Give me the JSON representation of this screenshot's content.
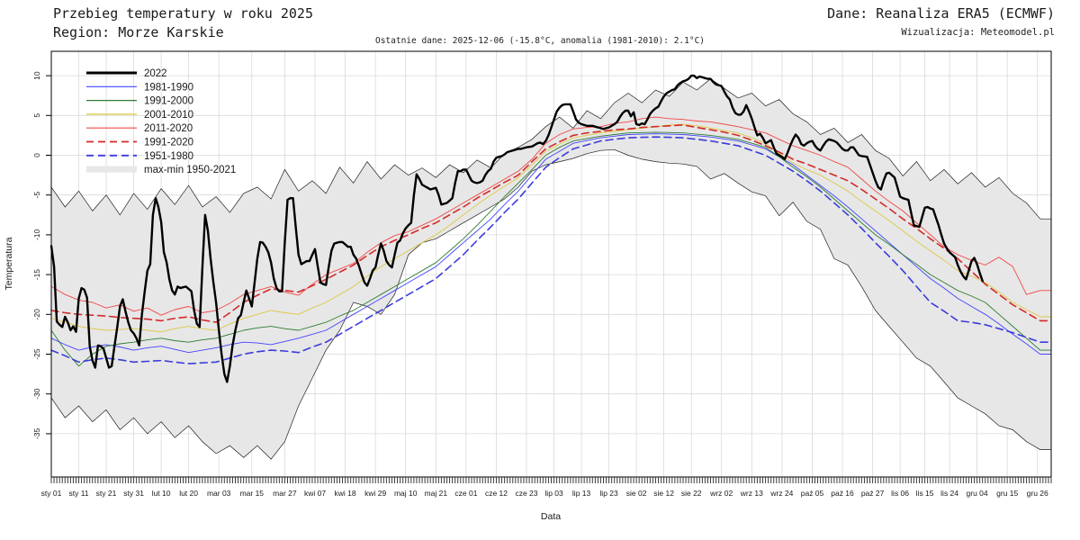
{
  "header": {
    "title": "Przebieg temperatury w roku 2025",
    "region": "Region: Morze Karskie",
    "source": "Dane: Reanaliza ERA5 (ECMWF)",
    "credit": "Wizualizacja: Meteomodel.pl",
    "subtitle": "Ostatnie dane: 2025-12-06 (-15.8°C, anomalia (1981-2010): 2.1°C)"
  },
  "chart_data": {
    "type": "line",
    "xlabel": "Data",
    "ylabel": "Temperatura",
    "grid": true,
    "legend_position": "top-left-inside",
    "yticks": [
      10,
      5,
      0,
      -5,
      -10,
      -15,
      -20,
      -25,
      -30,
      -35
    ],
    "ylim": [
      -40.4,
      13.1
    ],
    "days_total": 364,
    "x_ticks": [
      {
        "label": "sty 01",
        "day": 0
      },
      {
        "label": "sty 11",
        "day": 10
      },
      {
        "label": "sty 21",
        "day": 20
      },
      {
        "label": "sty 31",
        "day": 30
      },
      {
        "label": "lut 10",
        "day": 40
      },
      {
        "label": "lut 20",
        "day": 50
      },
      {
        "label": "mar 03",
        "day": 61
      },
      {
        "label": "mar 15",
        "day": 73
      },
      {
        "label": "mar 27",
        "day": 85
      },
      {
        "label": "kwi 07",
        "day": 96
      },
      {
        "label": "kwi 18",
        "day": 107
      },
      {
        "label": "kwi 29",
        "day": 118
      },
      {
        "label": "maj 10",
        "day": 129
      },
      {
        "label": "maj 21",
        "day": 140
      },
      {
        "label": "cze 01",
        "day": 151
      },
      {
        "label": "cze 12",
        "day": 162
      },
      {
        "label": "cze 23",
        "day": 173
      },
      {
        "label": "lip 03",
        "day": 183
      },
      {
        "label": "lip 13",
        "day": 193
      },
      {
        "label": "lip 23",
        "day": 203
      },
      {
        "label": "sie 02",
        "day": 213
      },
      {
        "label": "sie 12",
        "day": 223
      },
      {
        "label": "sie 22",
        "day": 233
      },
      {
        "label": "wrz 02",
        "day": 244
      },
      {
        "label": "wrz 13",
        "day": 255
      },
      {
        "label": "wrz 24",
        "day": 266
      },
      {
        "label": "paź 05",
        "day": 277
      },
      {
        "label": "paź 16",
        "day": 288
      },
      {
        "label": "paź 27",
        "day": 299
      },
      {
        "label": "lis 06",
        "day": 309
      },
      {
        "label": "lis 15",
        "day": 318
      },
      {
        "label": "lis 24",
        "day": 327
      },
      {
        "label": "gru 04",
        "day": 337
      },
      {
        "label": "gru 15",
        "day": 348
      },
      {
        "label": "gru 26",
        "day": 359
      }
    ],
    "band": {
      "name": "max-min 1950-2021",
      "fill": "#e7e7e7",
      "edge": "#1f1f1f",
      "step_days": 5,
      "max": [
        -4.0,
        -6.5,
        -4.5,
        -7.0,
        -5.0,
        -7.5,
        -4.8,
        -6.8,
        -4.2,
        -6.2,
        -3.8,
        -6.5,
        -5.2,
        -7.2,
        -4.8,
        -4.0,
        -5.5,
        -1.8,
        -4.5,
        -3.2,
        -4.8,
        -1.5,
        -3.5,
        -0.8,
        -3.0,
        -1.2,
        -2.5,
        -1.6,
        -2.8,
        -1.2,
        -2.2,
        -0.6,
        -1.6,
        0.2,
        1.0,
        2.0,
        3.6,
        4.8,
        3.4,
        5.6,
        4.6,
        6.6,
        7.8,
        6.6,
        8.2,
        7.4,
        9.2,
        8.2,
        9.6,
        8.4,
        7.2,
        7.8,
        6.2,
        7.0,
        5.2,
        4.2,
        2.6,
        3.4,
        1.6,
        2.6,
        0.6,
        -0.4,
        -2.6,
        -0.8,
        -3.2,
        -1.8,
        -3.6,
        -2.2,
        -4.0,
        -2.8,
        -4.8,
        -6.0,
        -8.0
      ],
      "min": [
        -30.5,
        -33.0,
        -31.5,
        -33.5,
        -32.0,
        -34.5,
        -33.0,
        -35.0,
        -33.5,
        -35.5,
        -34.0,
        -36.0,
        -37.5,
        -36.5,
        -38.0,
        -36.5,
        -38.2,
        -36.0,
        -31.5,
        -28.0,
        -24.5,
        -22.0,
        -18.5,
        -19.0,
        -20.0,
        -17.5,
        -12.5,
        -11.0,
        -10.5,
        -9.5,
        -8.5,
        -7.5,
        -6.5,
        -5.5,
        -4.0,
        -2.0,
        -1.2,
        -0.8,
        -0.4,
        0.2,
        0.6,
        0.7,
        0.0,
        -0.5,
        -0.8,
        -1.0,
        -1.1,
        -1.4,
        -3.0,
        -2.3,
        -3.5,
        -4.6,
        -5.1,
        -7.6,
        -5.9,
        -8.3,
        -9.3,
        -13.0,
        -13.8,
        -16.5,
        -19.5,
        -21.5,
        -23.5,
        -25.5,
        -26.5,
        -28.5,
        -30.5,
        -31.5,
        -32.5,
        -34.0,
        -34.5,
        -36.0,
        -37.0
      ]
    },
    "series": [
      {
        "name": "2022",
        "color": "#000000",
        "width": 2.4,
        "dash": false,
        "step_days": 1,
        "values": [
          -11.4,
          -14.0,
          -20.9,
          -21.3,
          -21.6,
          -20.3,
          -21.0,
          -22.0,
          -21.5,
          -22.2,
          -18.0,
          -16.7,
          -16.9,
          -17.9,
          -24.0,
          -25.8,
          -26.7,
          -23.9,
          -24.0,
          -24.3,
          -25.5,
          -26.7,
          -26.5,
          -24.0,
          -21.6,
          -19.0,
          -18.1,
          -19.6,
          -21.0,
          -22.0,
          -22.4,
          -23.0,
          -23.9,
          -20.0,
          -17.1,
          -14.5,
          -13.7,
          -7.5,
          -5.4,
          -6.5,
          -8.4,
          -12.2,
          -13.5,
          -15.6,
          -17.0,
          -17.5,
          -16.5,
          -16.7,
          -16.6,
          -16.5,
          -16.8,
          -17.1,
          -19.5,
          -21.2,
          -21.6,
          -14.1,
          -7.5,
          -9.5,
          -13.0,
          -16.0,
          -18.5,
          -22.0,
          -25.0,
          -27.5,
          -28.5,
          -26.5,
          -23.9,
          -22.0,
          -20.5,
          -20.1,
          -18.5,
          -17.0,
          -18.0,
          -19.0,
          -16.0,
          -13.0,
          -10.9,
          -11.0,
          -11.5,
          -12.2,
          -13.5,
          -15.5,
          -16.7,
          -17.1,
          -17.1,
          -11.0,
          -5.6,
          -5.4,
          -5.4,
          -9.0,
          -12.5,
          -13.7,
          -13.5,
          -13.3,
          -13.3,
          -12.5,
          -11.8,
          -14.0,
          -16.0,
          -16.2,
          -16.3,
          -14.0,
          -12.0,
          -11.1,
          -11.0,
          -10.9,
          -10.9,
          -11.2,
          -11.5,
          -11.5,
          -12.5,
          -13.0,
          -13.9,
          -15.0,
          -16.0,
          -16.4,
          -15.5,
          -14.5,
          -14.1,
          -12.5,
          -11.1,
          -12.0,
          -13.3,
          -13.8,
          -14.1,
          -12.5,
          -11.0,
          -10.7,
          -9.8,
          -9.2,
          -8.8,
          -8.5,
          -5.0,
          -2.4,
          -3.0,
          -3.7,
          -3.9,
          -4.1,
          -4.3,
          -4.2,
          -4.1,
          -5.0,
          -6.2,
          -6.1,
          -6.0,
          -5.7,
          -5.4,
          -3.5,
          -2.0,
          -2.0,
          -1.8,
          -1.8,
          -2.5,
          -3.2,
          -3.4,
          -3.5,
          -3.4,
          -3.2,
          -2.5,
          -2.0,
          -1.7,
          -0.8,
          -0.3,
          -0.2,
          -0.1,
          0.1,
          0.4,
          0.5,
          0.6,
          0.7,
          0.8,
          0.8,
          0.9,
          1.0,
          1.05,
          1.1,
          1.3,
          1.5,
          1.6,
          1.4,
          1.8,
          2.5,
          3.5,
          4.5,
          5.5,
          6.0,
          6.3,
          6.4,
          6.4,
          6.4,
          5.5,
          4.5,
          4.1,
          3.9,
          3.8,
          3.7,
          3.7,
          3.7,
          3.6,
          3.5,
          3.4,
          3.3,
          3.4,
          3.5,
          3.7,
          3.9,
          4.2,
          4.8,
          5.3,
          5.6,
          5.6,
          4.9,
          5.4,
          3.9,
          3.8,
          4.0,
          3.9,
          4.5,
          5.2,
          5.6,
          5.9,
          6.1,
          6.8,
          7.4,
          7.8,
          8.0,
          8.2,
          8.3,
          8.8,
          9.1,
          9.3,
          9.4,
          9.6,
          10.0,
          10.0,
          9.7,
          9.9,
          9.8,
          9.7,
          9.6,
          9.6,
          9.2,
          8.9,
          8.8,
          8.7,
          8.0,
          7.4,
          7.0,
          6.0,
          5.3,
          5.1,
          5.1,
          5.5,
          6.3,
          5.5,
          4.6,
          3.5,
          2.5,
          2.7,
          2.2,
          1.5,
          1.7,
          1.9,
          1.0,
          0.2,
          0.0,
          -0.2,
          -0.5,
          0.3,
          1.2,
          2.0,
          2.6,
          2.2,
          1.4,
          1.2,
          1.5,
          1.7,
          1.8,
          1.2,
          0.8,
          0.6,
          1.2,
          1.7,
          2.0,
          1.9,
          1.8,
          1.6,
          1.2,
          0.8,
          0.6,
          0.6,
          1.0,
          1.0,
          0.5,
          0.0,
          -0.1,
          -0.15,
          -0.2,
          -1.2,
          -2.2,
          -3.2,
          -4.0,
          -4.3,
          -3.2,
          -2.3,
          -2.2,
          -2.5,
          -2.8,
          -4.0,
          -5.2,
          -5.4,
          -5.5,
          -5.6,
          -7.2,
          -8.8,
          -8.9,
          -9.0,
          -7.8,
          -6.6,
          -6.5,
          -6.7,
          -6.8,
          -7.8,
          -8.8,
          -10.0,
          -11.1,
          -11.7,
          -12.2,
          -12.5,
          -12.8,
          -13.8,
          -14.6,
          -15.2,
          -15.6,
          -14.5,
          -13.3,
          -12.9,
          -13.7,
          -14.8,
          -15.8
        ]
      },
      {
        "name": "1981-1990",
        "color": "#4444ff",
        "width": 0.9,
        "dash": false,
        "step_days": 5,
        "values": [
          -23.0,
          -23.8,
          -24.5,
          -24.1,
          -23.8,
          -24.1,
          -24.5,
          -24.2,
          -24.0,
          -24.4,
          -24.8,
          -24.5,
          -24.2,
          -23.8,
          -23.5,
          -23.6,
          -23.8,
          -23.4,
          -23.0,
          -22.5,
          -22.0,
          -21.0,
          -20.0,
          -19.0,
          -18.0,
          -17.0,
          -16.0,
          -15.0,
          -14.0,
          -12.5,
          -11.0,
          -9.5,
          -8.0,
          -6.2,
          -4.5,
          -2.5,
          -0.5,
          0.5,
          1.5,
          1.85,
          2.2,
          2.4,
          2.6,
          2.65,
          2.7,
          2.65,
          2.6,
          2.45,
          2.3,
          2.05,
          1.8,
          1.3,
          0.8,
          -0.2,
          -1.2,
          -2.5,
          -3.8,
          -5.1,
          -6.5,
          -8.0,
          -9.5,
          -11.0,
          -12.5,
          -14.0,
          -15.5,
          -16.7,
          -18.0,
          -19.0,
          -20.0,
          -21.2,
          -22.5,
          -23.7,
          -25.0
        ]
      },
      {
        "name": "1991-2000",
        "color": "#2e7d32",
        "width": 0.9,
        "dash": false,
        "step_days": 5,
        "values": [
          -22.0,
          -24.5,
          -26.5,
          -25.0,
          -24.0,
          -23.7,
          -23.5,
          -23.2,
          -23.0,
          -23.3,
          -23.5,
          -23.2,
          -23.0,
          -22.5,
          -22.0,
          -21.7,
          -21.5,
          -21.8,
          -22.0,
          -21.5,
          -21.0,
          -20.2,
          -19.5,
          -18.5,
          -17.5,
          -16.5,
          -15.5,
          -14.5,
          -13.5,
          -12.0,
          -10.5,
          -8.8,
          -7.0,
          -5.2,
          -3.5,
          -1.8,
          0.0,
          1.0,
          1.8,
          2.1,
          2.4,
          2.6,
          2.8,
          2.85,
          2.9,
          2.85,
          2.8,
          2.65,
          2.5,
          2.25,
          2.0,
          1.5,
          1.0,
          -0.2,
          -1.5,
          -2.7,
          -4.0,
          -5.5,
          -7.0,
          -8.5,
          -10.0,
          -11.2,
          -12.5,
          -13.7,
          -15.0,
          -16.0,
          -17.0,
          -17.7,
          -18.5,
          -20.0,
          -21.5,
          -23.0,
          -24.5
        ]
      },
      {
        "name": "2001-2010",
        "color": "#ddc944",
        "width": 0.9,
        "dash": false,
        "step_days": 5,
        "values": [
          -20.5,
          -21.0,
          -21.5,
          -21.8,
          -22.0,
          -21.9,
          -21.8,
          -22.0,
          -22.2,
          -21.8,
          -21.5,
          -21.8,
          -22.0,
          -21.2,
          -20.5,
          -20.0,
          -19.5,
          -19.8,
          -20.0,
          -19.2,
          -18.5,
          -17.5,
          -16.5,
          -15.2,
          -14.0,
          -13.0,
          -12.0,
          -11.0,
          -10.0,
          -8.8,
          -7.5,
          -6.2,
          -5.0,
          -3.9,
          -2.8,
          -1.2,
          0.5,
          1.4,
          2.2,
          2.5,
          2.8,
          3.0,
          3.2,
          3.4,
          3.6,
          3.8,
          3.9,
          3.7,
          3.4,
          3.1,
          2.8,
          2.2,
          1.5,
          0.2,
          -1.0,
          -1.8,
          -2.5,
          -3.5,
          -4.5,
          -5.8,
          -7.0,
          -8.2,
          -9.5,
          -10.8,
          -12.0,
          -13.2,
          -14.5,
          -15.2,
          -16.0,
          -17.2,
          -18.5,
          -19.4,
          -20.3
        ]
      },
      {
        "name": "2011-2020",
        "color": "#f04848",
        "width": 0.9,
        "dash": false,
        "step_days": 5,
        "values": [
          -16.5,
          -17.5,
          -18.2,
          -18.5,
          -19.2,
          -18.8,
          -19.6,
          -19.2,
          -20.1,
          -19.4,
          -19.0,
          -19.8,
          -19.5,
          -18.6,
          -17.5,
          -17.0,
          -16.5,
          -17.2,
          -17.6,
          -16.2,
          -15.0,
          -14.3,
          -13.6,
          -12.2,
          -11.0,
          -10.1,
          -9.6,
          -8.8,
          -8.0,
          -7.0,
          -6.0,
          -5.0,
          -4.0,
          -3.0,
          -2.0,
          -0.5,
          1.5,
          2.6,
          3.3,
          3.5,
          3.6,
          4.0,
          4.2,
          4.6,
          4.8,
          4.6,
          4.5,
          4.3,
          4.2,
          3.9,
          3.6,
          3.2,
          2.8,
          2.0,
          1.2,
          0.6,
          0.0,
          -0.8,
          -1.5,
          -3.0,
          -4.5,
          -5.8,
          -7.0,
          -8.5,
          -10.0,
          -11.5,
          -12.5,
          -13.2,
          -13.8,
          -12.8,
          -14.0,
          -17.5,
          -17.0
        ]
      },
      {
        "name": "1991-2020",
        "color": "#d42a2a",
        "width": 1.6,
        "dash": true,
        "step_days": 5,
        "values": [
          -19.5,
          -19.8,
          -20.0,
          -20.1,
          -20.2,
          -20.4,
          -20.5,
          -20.6,
          -20.8,
          -20.5,
          -20.3,
          -20.7,
          -21.0,
          -19.8,
          -18.5,
          -17.6,
          -16.8,
          -17.0,
          -17.2,
          -16.4,
          -15.6,
          -14.7,
          -13.8,
          -12.6,
          -11.5,
          -10.7,
          -10.0,
          -9.2,
          -8.5,
          -7.5,
          -6.5,
          -5.4,
          -4.4,
          -3.4,
          -2.5,
          -0.8,
          0.8,
          1.7,
          2.5,
          2.8,
          3.0,
          3.2,
          3.3,
          3.5,
          3.6,
          3.7,
          3.8,
          3.5,
          3.2,
          2.9,
          2.5,
          1.9,
          1.2,
          0.4,
          -0.5,
          -1.1,
          -1.8,
          -2.5,
          -3.2,
          -4.3,
          -5.5,
          -6.7,
          -8.0,
          -9.2,
          -10.5,
          -11.7,
          -13.0,
          -14.6,
          -16.2,
          -17.5,
          -18.8,
          -19.8,
          -20.8
        ]
      },
      {
        "name": "1951-1980",
        "color": "#3b3bdd",
        "width": 1.6,
        "dash": true,
        "step_days": 5,
        "values": [
          -24.5,
          -25.2,
          -26.0,
          -25.7,
          -25.5,
          -25.7,
          -26.0,
          -25.9,
          -25.8,
          -26.0,
          -26.2,
          -26.1,
          -26.0,
          -25.5,
          -25.0,
          -24.7,
          -24.5,
          -24.6,
          -24.8,
          -24.1,
          -23.5,
          -22.5,
          -21.5,
          -20.5,
          -19.5,
          -18.5,
          -17.5,
          -16.5,
          -15.5,
          -14.0,
          -12.5,
          -10.7,
          -9.0,
          -7.2,
          -5.5,
          -3.5,
          -1.5,
          -0.3,
          0.8,
          1.3,
          1.8,
          2.0,
          2.2,
          2.25,
          2.3,
          2.25,
          2.2,
          2.0,
          1.8,
          1.5,
          1.2,
          0.6,
          0.0,
          -1.0,
          -2.0,
          -3.2,
          -4.5,
          -6.0,
          -7.5,
          -9.2,
          -11.0,
          -12.7,
          -14.5,
          -16.5,
          -18.5,
          -19.6,
          -20.8,
          -21.0,
          -21.3,
          -21.8,
          -22.3,
          -22.9,
          -23.5
        ]
      }
    ]
  }
}
